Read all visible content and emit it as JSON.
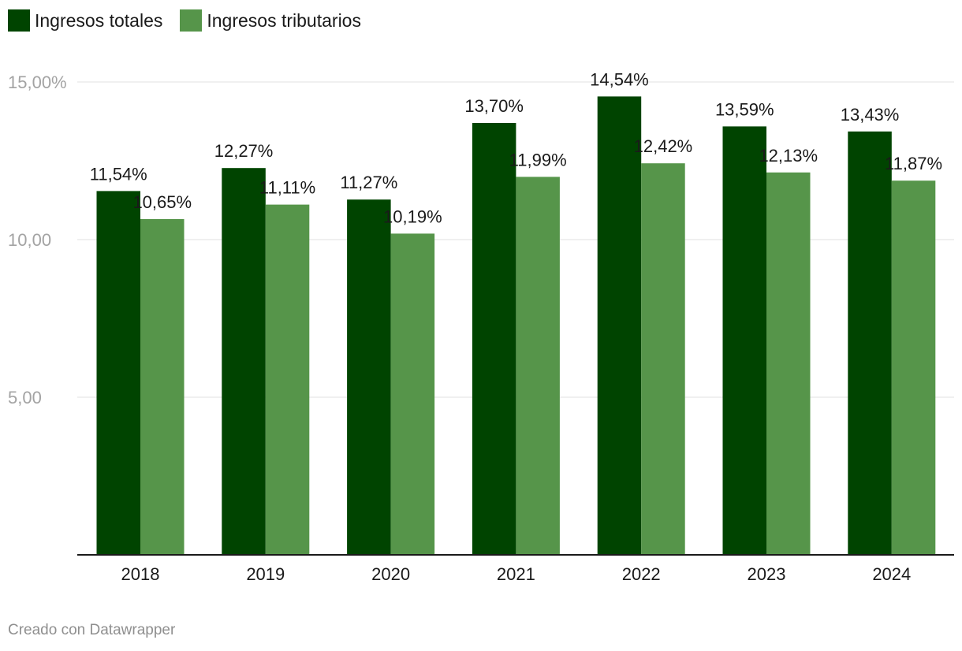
{
  "colors": {
    "series_1": "#004400",
    "series_2": "#56954a",
    "grid": "#e2e2e2",
    "baseline": "#1a1a1a"
  },
  "footer": {
    "credit": "Creado con Datawrapper"
  },
  "chart_data": {
    "type": "bar",
    "title": "",
    "xlabel": "",
    "ylabel": "",
    "ylim": [
      0,
      15
    ],
    "grid": true,
    "legend_position": "top-left",
    "y_ticks": [
      {
        "value": 15,
        "label": "15,00%"
      },
      {
        "value": 10,
        "label": "10,00"
      },
      {
        "value": 5,
        "label": "5,00"
      }
    ],
    "categories": [
      "2018",
      "2019",
      "2020",
      "2021",
      "2022",
      "2023",
      "2024"
    ],
    "series": [
      {
        "name": "Ingresos totales",
        "color": "#004400",
        "values": [
          11.54,
          12.27,
          11.27,
          13.7,
          14.54,
          13.59,
          13.43
        ],
        "labels": [
          "11,54%",
          "12,27%",
          "11,27%",
          "13,70%",
          "14,54%",
          "13,59%",
          "13,43%"
        ]
      },
      {
        "name": "Ingresos tributarios",
        "color": "#56954a",
        "values": [
          10.65,
          11.11,
          10.19,
          11.99,
          12.42,
          12.13,
          11.87
        ],
        "labels": [
          "10,65%",
          "11,11%",
          "10,19%",
          "11,99%",
          "12,42%",
          "12,13%",
          "11,87%"
        ]
      }
    ]
  }
}
